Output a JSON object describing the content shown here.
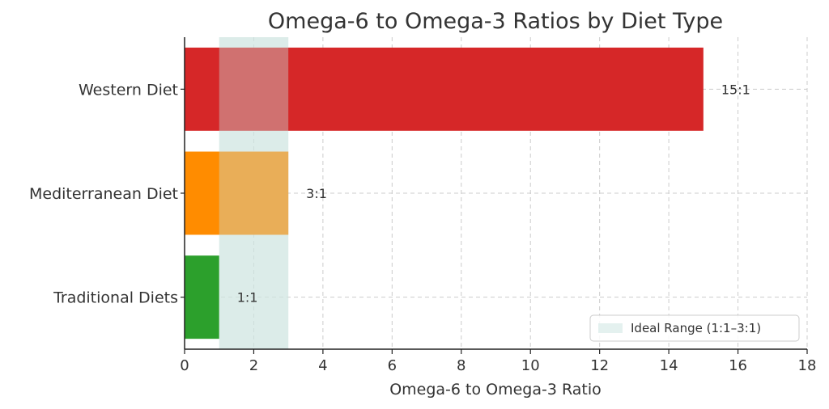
{
  "chart_data": {
    "type": "bar",
    "orientation": "horizontal",
    "title": "Omega-6 to Omega-3 Ratios by Diet Type",
    "xlabel": "Omega-6 to Omega-3 Ratio",
    "ylabel": "",
    "xlim": [
      0,
      18
    ],
    "xticks": [
      0,
      2,
      4,
      6,
      8,
      10,
      12,
      14,
      16,
      18
    ],
    "categories": [
      "Western Diet",
      "Mediterranean Diet",
      "Traditional Diets"
    ],
    "values": [
      15,
      3,
      1
    ],
    "data_labels": [
      "15:1",
      "3:1",
      "1:1"
    ],
    "colors": [
      "#d62728",
      "#ff8c00",
      "#2ca02c"
    ],
    "grid": true,
    "ideal_range": {
      "label": "Ideal Range (1:1–3:1)",
      "from": 1,
      "to": 3,
      "color": "#d9ebe8"
    },
    "legend": {
      "placement": "bottom-right",
      "entries": [
        "Ideal Range (1:1–3:1)"
      ]
    }
  }
}
